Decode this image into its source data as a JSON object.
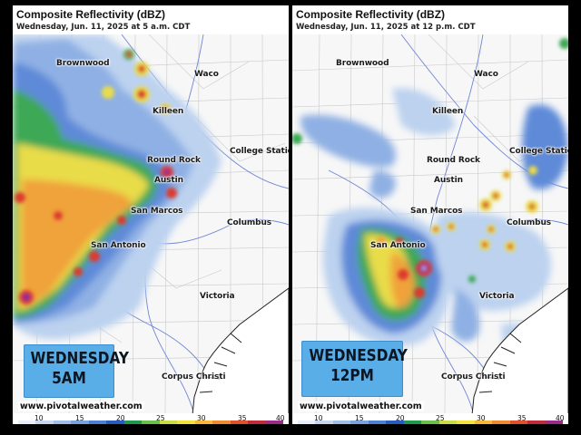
{
  "panels": [
    {
      "title": "Composite Reflectivity (dBZ)",
      "subtitle": "Wednesday, Jun. 11, 2025 at 5 a.m. CDT",
      "badge_line1": "WEDNESDAY",
      "badge_line2": "5AM",
      "credit": "www.pivotalweather.com"
    },
    {
      "title": "Composite Reflectivity (dBZ)",
      "subtitle": "Wednesday, Jun. 11, 2025 at 12 p.m. CDT",
      "badge_line1": "WEDNESDAY",
      "badge_line2": "12PM",
      "credit": "www.pivotalweather.com"
    }
  ],
  "cities": [
    "Brownwood",
    "Waco",
    "Killeen",
    "Round Rock",
    "College Station",
    "Austin",
    "San Marcos",
    "Columbus",
    "San Antonio",
    "Victoria",
    "Corpus Christi"
  ],
  "colorbar_ticks": [
    "10",
    "15",
    "20",
    "25",
    "30",
    "35",
    "40"
  ],
  "colorbar_colors": [
    "#e8eef8",
    "#c6d6ee",
    "#9fbde6",
    "#7aa2dc",
    "#4f7fd0",
    "#2a5cc0",
    "#1f9a4a",
    "#6cc04a",
    "#c8dc46",
    "#f4e23a",
    "#f7b83a",
    "#f08a2e",
    "#e0502a",
    "#c02a3a",
    "#9a2a8a"
  ],
  "colors": {
    "badge": "#5aaee8",
    "light_blue": "#bcd2ef",
    "blue": "#5f8ad8",
    "dark_blue": "#2f5bbf",
    "green": "#3ea854",
    "yellow": "#e9dc4a",
    "orange": "#f0a23a",
    "red": "#dc3a2e",
    "purple": "#7a2d9a"
  }
}
